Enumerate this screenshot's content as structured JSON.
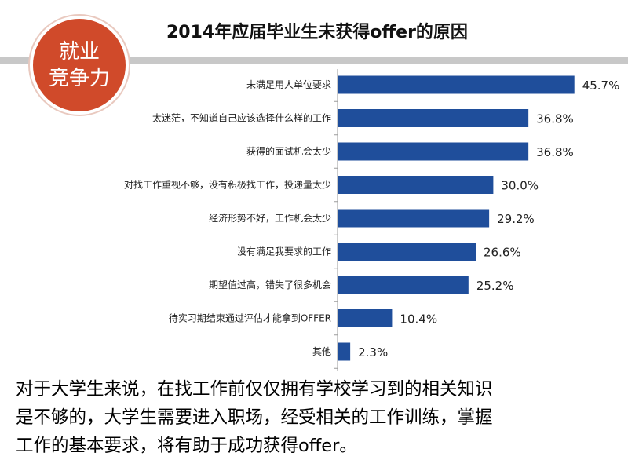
{
  "badge": {
    "line1": "就业",
    "line2": "竞争力"
  },
  "colors": {
    "bar": "#1f4e9b",
    "badge": "#d04a2a",
    "band": "#c8c8c8"
  },
  "description": "对于大学生来说，在找工作前仅仅拥有学校学习到的相关知识\n是不够的，大学生需要进入职场，经受相关的工作训练，掌握\n工作的基本要求，将有助于成功获得offer。",
  "chart_data": {
    "type": "bar",
    "orientation": "horizontal",
    "title": "2014年应届毕业生未获得offer的原因",
    "categories": [
      "未满足用人单位要求",
      "太迷茫，不知道自己应该选择什么样的工作",
      "获得的面试机会太少",
      "对找工作重视不够，没有积极找工作，投递量太少",
      "经济形势不好，工作机会太少",
      "没有满足我要求的工作",
      "期望值过高，错失了很多机会",
      "待实习期结束通过评估才能拿到OFFER",
      "其他"
    ],
    "values": [
      45.7,
      36.8,
      36.8,
      30.0,
      29.2,
      26.6,
      25.2,
      10.4,
      2.3
    ],
    "value_labels": [
      "45.7%",
      "36.8%",
      "36.8%",
      "30.0%",
      "29.2%",
      "26.6%",
      "25.2%",
      "10.4%",
      "2.3%"
    ],
    "unit": "%",
    "grid": false,
    "legend": "none"
  }
}
